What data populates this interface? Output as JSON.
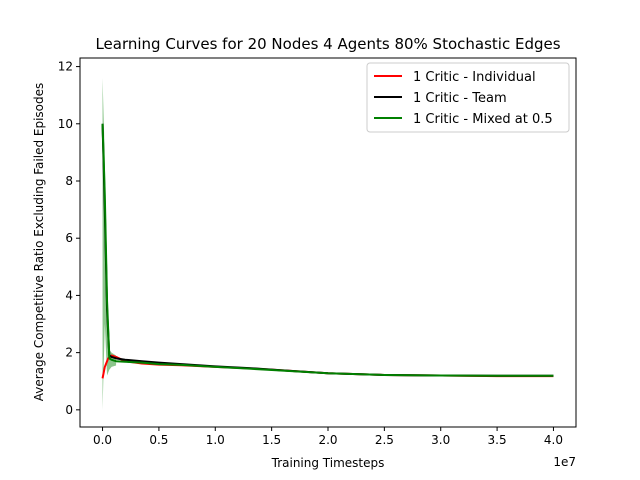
{
  "chart_data": {
    "type": "line",
    "title": "Learning Curves for 20 Nodes 4 Agents 80% Stochastic Edges",
    "xlabel": "Training Timesteps",
    "ylabel": "Average Competitive Ratio Excluding Failed Episodes",
    "x_offset_label": "1e7",
    "xlim": [
      -0.2,
      4.2
    ],
    "ylim": [
      -0.6,
      12.3
    ],
    "x_ticks": [
      0.0,
      0.5,
      1.0,
      1.5,
      2.0,
      2.5,
      3.0,
      3.5,
      4.0
    ],
    "x_tick_labels": [
      "0.0",
      "0.5",
      "1.0",
      "1.5",
      "2.0",
      "2.5",
      "3.0",
      "3.5",
      "4.0"
    ],
    "y_ticks": [
      0,
      2,
      4,
      6,
      8,
      10,
      12
    ],
    "y_tick_labels": [
      "0",
      "2",
      "4",
      "6",
      "8",
      "10",
      "12"
    ],
    "legend_position": "top-right",
    "x_units_note": "timesteps x 1e7",
    "series": [
      {
        "name": "1 Critic - Individual",
        "color": "#ff0000",
        "x": [
          0.0,
          0.02,
          0.05,
          0.08,
          0.12,
          0.2,
          0.35,
          0.5,
          0.7,
          1.0,
          1.3,
          1.6,
          2.0,
          2.5,
          3.0,
          3.5,
          4.0
        ],
        "y": [
          1.1,
          1.5,
          1.8,
          1.9,
          1.85,
          1.7,
          1.62,
          1.58,
          1.56,
          1.5,
          1.45,
          1.38,
          1.28,
          1.22,
          1.2,
          1.18,
          1.18
        ]
      },
      {
        "name": "1 Critic - Team",
        "color": "#000000",
        "x": [
          0.0,
          0.02,
          0.04,
          0.06,
          0.08,
          0.12,
          0.2,
          0.35,
          0.5,
          0.7,
          1.0,
          1.3,
          1.6,
          2.0,
          2.5,
          3.0,
          3.5,
          4.0
        ],
        "y": [
          10.0,
          7.0,
          3.5,
          1.9,
          1.85,
          1.8,
          1.75,
          1.7,
          1.65,
          1.6,
          1.52,
          1.46,
          1.38,
          1.28,
          1.22,
          1.2,
          1.19,
          1.19
        ]
      },
      {
        "name": "1 Critic - Mixed at 0.5",
        "color": "#008000",
        "x": [
          0.0,
          0.02,
          0.04,
          0.06,
          0.08,
          0.12,
          0.2,
          0.35,
          0.5,
          0.7,
          1.0,
          1.3,
          1.6,
          2.0,
          2.5,
          3.0,
          3.5,
          4.0
        ],
        "y": [
          10.0,
          7.5,
          3.8,
          1.8,
          1.75,
          1.7,
          1.68,
          1.65,
          1.6,
          1.57,
          1.5,
          1.44,
          1.37,
          1.28,
          1.22,
          1.2,
          1.19,
          1.19
        ]
      }
    ],
    "uncertainty_band": {
      "series": "1 Critic - Mixed at 0.5",
      "color": "#008000",
      "x": [
        0.0,
        0.02,
        0.04,
        0.06,
        0.08,
        0.12
      ],
      "upper": [
        11.6,
        8.8,
        4.6,
        2.1,
        2.0,
        1.9
      ],
      "lower": [
        0.0,
        3.0,
        1.2,
        1.4,
        1.5,
        1.55
      ]
    }
  }
}
